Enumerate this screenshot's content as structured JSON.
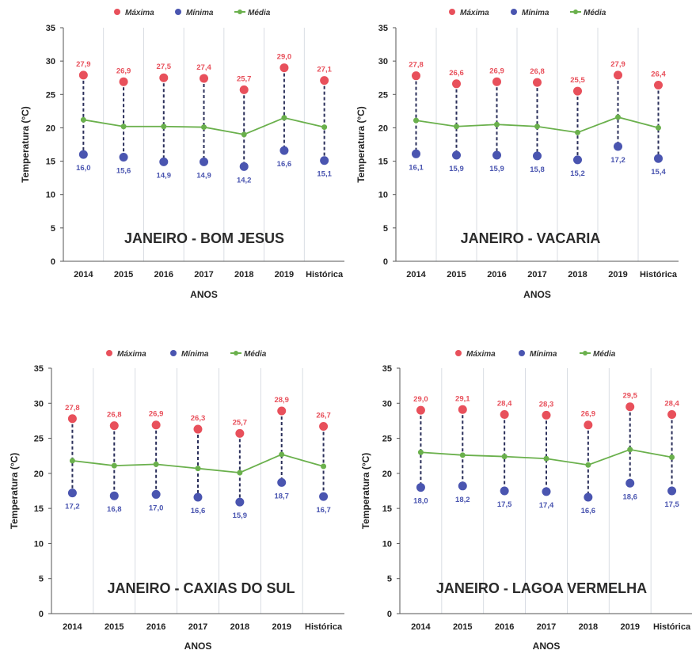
{
  "colors": {
    "max": "#e8505b",
    "min": "#4a55b0",
    "mean": "#6ab04c",
    "grid": "#cfd4dc"
  },
  "chart_data": [
    {
      "type": "line",
      "title": "JANEIRO - BOM JESUS",
      "xlabel": "ANOS",
      "ylabel": "Temperatura (°C)",
      "ylim": [
        0,
        35
      ],
      "yticks": [
        "0",
        "5",
        "10",
        "15",
        "20",
        "25",
        "30",
        "35"
      ],
      "categories": [
        "2014",
        "2015",
        "2016",
        "2017",
        "2018",
        "2019",
        "Histórica"
      ],
      "legend": "top",
      "series": [
        {
          "name": "Máxima",
          "values": [
            27.9,
            26.9,
            27.5,
            27.4,
            25.7,
            29.0,
            27.1
          ],
          "labels": [
            "27,9",
            "26,9",
            "27,5",
            "27,4",
            "25,7",
            "29,0",
            "27,1"
          ]
        },
        {
          "name": "Mínima",
          "values": [
            16.0,
            15.6,
            14.9,
            14.9,
            14.2,
            16.6,
            15.1
          ],
          "labels": [
            "16,0",
            "15,6",
            "14,9",
            "14,9",
            "14,2",
            "16,6",
            "15,1"
          ]
        },
        {
          "name": "Média",
          "values": [
            21.2,
            20.2,
            20.2,
            20.1,
            19.0,
            21.5,
            20.1
          ]
        }
      ]
    },
    {
      "type": "line",
      "title": "JANEIRO - VACARIA",
      "xlabel": "ANOS",
      "ylabel": "Temperatura (°C)",
      "ylim": [
        0,
        35
      ],
      "yticks": [
        "0",
        "5",
        "10",
        "15",
        "20",
        "25",
        "30",
        "35"
      ],
      "categories": [
        "2014",
        "2015",
        "2016",
        "2017",
        "2018",
        "2019",
        "Histórica"
      ],
      "legend": "top",
      "series": [
        {
          "name": "Máxima",
          "values": [
            27.8,
            26.6,
            26.9,
            26.8,
            25.5,
            27.9,
            26.4
          ],
          "labels": [
            "27,8",
            "26,6",
            "26,9",
            "26,8",
            "25,5",
            "27,9",
            "26,4"
          ]
        },
        {
          "name": "Mínima",
          "values": [
            16.1,
            15.9,
            15.9,
            15.8,
            15.2,
            17.2,
            15.4
          ],
          "labels": [
            "16,1",
            "15,9",
            "15,9",
            "15,8",
            "15,2",
            "17,2",
            "15,4"
          ]
        },
        {
          "name": "Média",
          "values": [
            21.1,
            20.2,
            20.5,
            20.2,
            19.3,
            21.6,
            20.0
          ]
        }
      ]
    },
    {
      "type": "line",
      "title": "JANEIRO - CAXIAS DO SUL",
      "xlabel": "ANOS",
      "ylabel": "Temperatura (°C)",
      "ylim": [
        0,
        35
      ],
      "yticks": [
        "0",
        "5",
        "10",
        "15",
        "20",
        "25",
        "30",
        "35"
      ],
      "categories": [
        "2014",
        "2015",
        "2016",
        "2017",
        "2018",
        "2019",
        "Histórica"
      ],
      "legend": "top",
      "series": [
        {
          "name": "Máxima",
          "values": [
            27.8,
            26.8,
            26.9,
            26.3,
            25.7,
            28.9,
            26.7
          ],
          "labels": [
            "27,8",
            "26,8",
            "26,9",
            "26,3",
            "25,7",
            "28,9",
            "26,7"
          ]
        },
        {
          "name": "Mínima",
          "values": [
            17.2,
            16.8,
            17.0,
            16.6,
            15.9,
            18.7,
            16.7
          ],
          "labels": [
            "17,2",
            "16,8",
            "17,0",
            "16,6",
            "15,9",
            "18,7",
            "16,7"
          ]
        },
        {
          "name": "Média",
          "values": [
            21.8,
            21.1,
            21.3,
            20.7,
            20.1,
            22.7,
            21.0
          ]
        }
      ]
    },
    {
      "type": "line",
      "title": "JANEIRO - LAGOA VERMELHA",
      "xlabel": "ANOS",
      "ylabel": "Temperatura (°C)",
      "ylim": [
        0,
        35
      ],
      "yticks": [
        "0",
        "5",
        "10",
        "15",
        "20",
        "25",
        "30",
        "35"
      ],
      "categories": [
        "2014",
        "2015",
        "2016",
        "2017",
        "2018",
        "2019",
        "Histórica"
      ],
      "legend": "top",
      "series": [
        {
          "name": "Máxima",
          "values": [
            29.0,
            29.1,
            28.4,
            28.3,
            26.9,
            29.5,
            28.4
          ],
          "labels": [
            "29,0",
            "29,1",
            "28,4",
            "28,3",
            "26,9",
            "29,5",
            "28,4"
          ]
        },
        {
          "name": "Mínima",
          "values": [
            18.0,
            18.2,
            17.5,
            17.4,
            16.6,
            18.6,
            17.5
          ],
          "labels": [
            "18,0",
            "18,2",
            "17,5",
            "17,4",
            "16,6",
            "18,6",
            "17,5"
          ]
        },
        {
          "name": "Média",
          "values": [
            23.0,
            22.6,
            22.4,
            22.1,
            21.2,
            23.4,
            22.3
          ]
        }
      ]
    }
  ]
}
